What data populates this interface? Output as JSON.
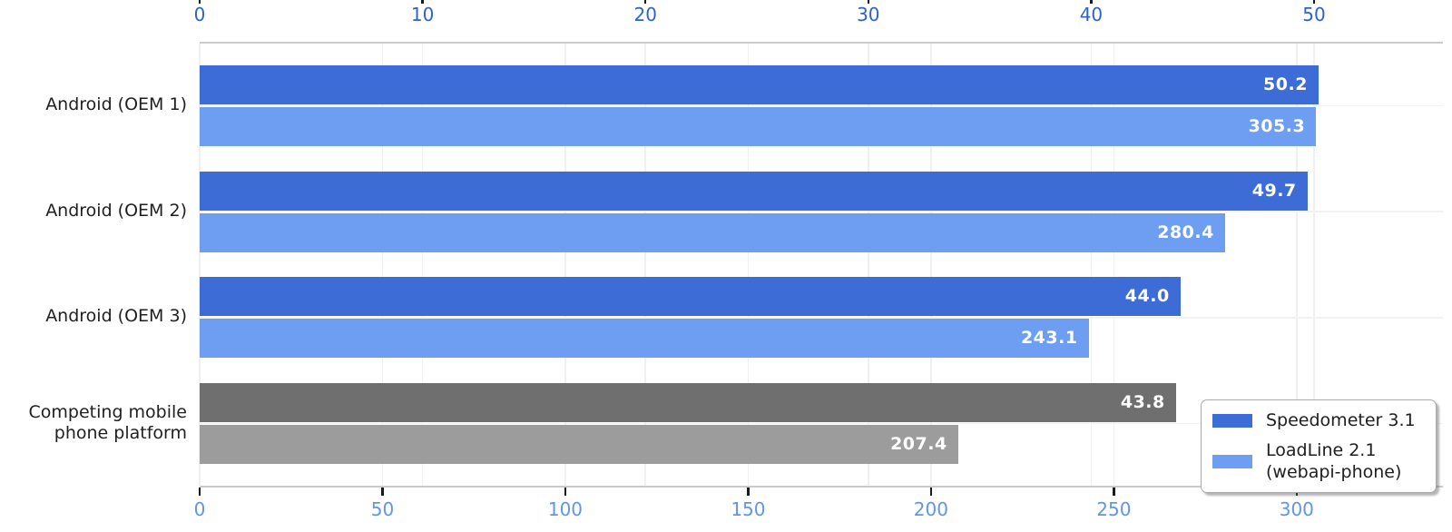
{
  "chart_data": {
    "type": "bar",
    "orientation": "horizontal",
    "grid": true,
    "categories": [
      "Android (OEM 1)",
      "Android (OEM 2)",
      "Android (OEM 3)",
      "Competing mobile phone platform"
    ],
    "categories_display": [
      [
        "Android (OEM 1)"
      ],
      [
        "Android (OEM 2)"
      ],
      [
        "Android (OEM 3)"
      ],
      [
        "Competing mobile",
        "phone platform"
      ]
    ],
    "series": [
      {
        "name": "Speedometer 3.1",
        "axis": "top",
        "values": [
          50.2,
          49.7,
          44.0,
          43.8
        ],
        "value_labels": [
          "50.2",
          "49.7",
          "44.0",
          "43.8"
        ],
        "bar_colors": [
          "#3d6cd6",
          "#3d6cd6",
          "#3d6cd6",
          "#6f6f6f"
        ]
      },
      {
        "name": "LoadLine 2.1 (webapi-phone)",
        "axis": "bottom",
        "values": [
          305.3,
          280.4,
          243.1,
          207.4
        ],
        "value_labels": [
          "305.3",
          "280.4",
          "243.1",
          "207.4"
        ],
        "bar_colors": [
          "#6d9ef2",
          "#6d9ef2",
          "#6d9ef2",
          "#9c9c9c"
        ]
      }
    ],
    "top_axis": {
      "ticks": [
        0,
        10,
        20,
        30,
        40,
        50
      ],
      "tick_labels": [
        "0",
        "10",
        "20",
        "30",
        "40",
        "50"
      ],
      "max": 55.78,
      "label_color": "#2e63cb"
    },
    "bottom_axis": {
      "ticks": [
        0,
        50,
        100,
        150,
        200,
        250,
        300
      ],
      "tick_labels": [
        "0",
        "50",
        "100",
        "150",
        "200",
        "250",
        "300"
      ],
      "max": 340,
      "label_color": "#6096e8"
    },
    "legend": {
      "position": "bottom-right",
      "items": [
        {
          "lines": [
            "Speedometer 3.1"
          ],
          "color": "#3d6cd6"
        },
        {
          "lines": [
            "LoadLine 2.1",
            "(webapi-phone)"
          ],
          "color": "#6d9ef2"
        }
      ]
    },
    "value_label_color": "#ffffff",
    "axis_line_color": "#cbcbcb",
    "gridline_color": "#f0f0f0"
  }
}
